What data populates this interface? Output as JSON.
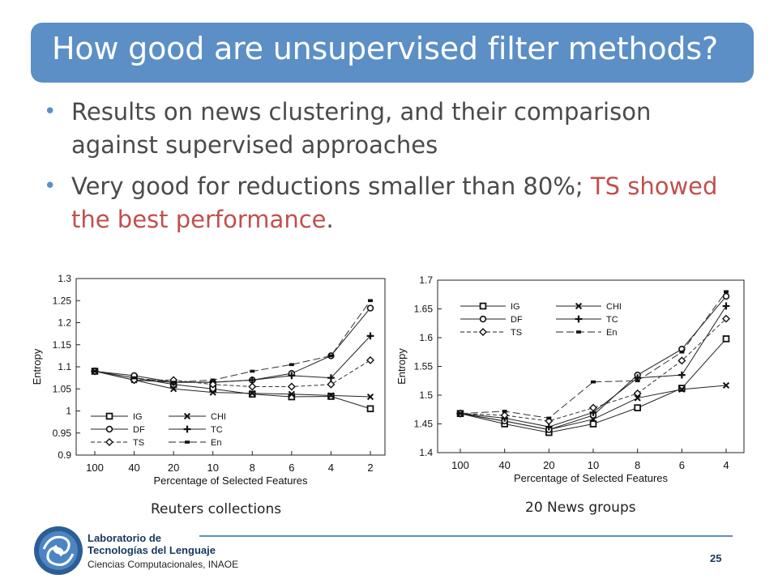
{
  "slide": {
    "title": "How good are unsupervised filter methods?",
    "bullets": [
      {
        "text": "Results on news clustering, and their comparison against supervised approaches"
      },
      {
        "text_before": "Very good for reductions smaller than 80%; ",
        "highlight": "TS showed the best performance",
        "text_after": "."
      }
    ],
    "footer": {
      "lab_line1": "Laboratorio de",
      "lab_line2": "Tecnologías del Lenguaje",
      "lab_line3": "Ciencias Computacionales, INAOE",
      "page_number": "25"
    }
  },
  "chart_data": [
    {
      "type": "line",
      "title": "",
      "caption": "Reuters collections",
      "xlabel": "Percentage of Selected Features",
      "ylabel": "Entropy",
      "categories": [
        "100",
        "40",
        "20",
        "10",
        "8",
        "6",
        "4",
        "2"
      ],
      "ylim": [
        0.9,
        1.3
      ],
      "yticks": [
        "0.9",
        "0.95",
        "1",
        "1.05",
        "1.1",
        "1.15",
        "1.2",
        "1.25",
        "1.3"
      ],
      "legend_position": "bottom-left",
      "series": [
        {
          "name": "IG",
          "marker": "square",
          "dash": "solid",
          "values": [
            1.09,
            1.075,
            1.06,
            1.05,
            1.038,
            1.032,
            1.033,
            1.005
          ]
        },
        {
          "name": "CHI",
          "marker": "x",
          "dash": "solid",
          "values": [
            1.09,
            1.07,
            1.05,
            1.042,
            1.04,
            1.038,
            1.035,
            1.032
          ]
        },
        {
          "name": "DF",
          "marker": "circle",
          "dash": "solid",
          "values": [
            1.09,
            1.08,
            1.065,
            1.065,
            1.07,
            1.085,
            1.125,
            1.233
          ]
        },
        {
          "name": "TC",
          "marker": "plus",
          "dash": "solid",
          "values": [
            1.09,
            1.07,
            1.065,
            1.065,
            1.07,
            1.08,
            1.075,
            1.17
          ]
        },
        {
          "name": "TS",
          "marker": "diamond",
          "dash": "dashed",
          "values": [
            1.09,
            1.07,
            1.07,
            1.06,
            1.055,
            1.055,
            1.06,
            1.115
          ]
        },
        {
          "name": "En",
          "marker": "dash",
          "dash": "longdash",
          "values": [
            1.09,
            1.075,
            1.065,
            1.07,
            1.09,
            1.105,
            1.125,
            1.25
          ]
        }
      ]
    },
    {
      "type": "line",
      "title": "",
      "caption": "20 News groups",
      "xlabel": "Percentage of Selected Features",
      "ylabel": "Entropy",
      "categories": [
        "100",
        "40",
        "20",
        "10",
        "8",
        "6",
        "4"
      ],
      "ylim": [
        1.4,
        1.7
      ],
      "yticks": [
        "1.4",
        "1.45",
        "1.5",
        "1.55",
        "1.6",
        "1.65",
        "1.7"
      ],
      "legend_position": "top-left",
      "series": [
        {
          "name": "IG",
          "marker": "square",
          "dash": "solid",
          "values": [
            1.468,
            1.45,
            1.435,
            1.45,
            1.478,
            1.512,
            1.598
          ]
        },
        {
          "name": "CHI",
          "marker": "x",
          "dash": "solid",
          "values": [
            1.468,
            1.455,
            1.44,
            1.458,
            1.495,
            1.51,
            1.517
          ]
        },
        {
          "name": "DF",
          "marker": "circle",
          "dash": "solid",
          "values": [
            1.468,
            1.455,
            1.44,
            1.465,
            1.535,
            1.58,
            1.672
          ]
        },
        {
          "name": "TC",
          "marker": "plus",
          "dash": "solid",
          "values": [
            1.468,
            1.46,
            1.445,
            1.47,
            1.53,
            1.535,
            1.655
          ]
        },
        {
          "name": "TS",
          "marker": "diamond",
          "dash": "dashed",
          "values": [
            1.468,
            1.465,
            1.455,
            1.478,
            1.503,
            1.56,
            1.633
          ]
        },
        {
          "name": "En",
          "marker": "dash",
          "dash": "longdash",
          "values": [
            1.468,
            1.472,
            1.46,
            1.523,
            1.525,
            1.575,
            1.68
          ]
        }
      ]
    }
  ]
}
